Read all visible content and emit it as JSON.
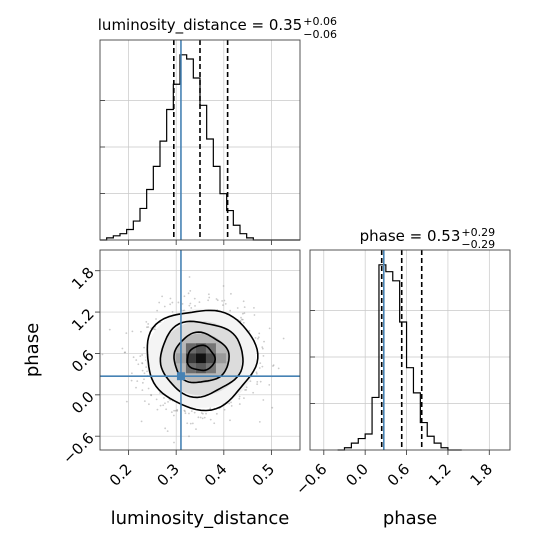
{
  "chart_data": {
    "type": "corner",
    "parameters": [
      "luminosity_distance",
      "phase"
    ],
    "truth": {
      "luminosity_distance": 0.31,
      "phase": 0.27
    },
    "titles": [
      {
        "param": "luminosity_distance",
        "median": "0.35",
        "plus": "+0.06",
        "minus": "−0.06"
      },
      {
        "param": "phase",
        "median": "0.53",
        "plus": "+0.29",
        "minus": "−0.29"
      }
    ],
    "luminosity_distance": {
      "xlim": [
        0.14,
        0.56
      ],
      "ticks": [
        0.2,
        0.3,
        0.4,
        0.5
      ],
      "tick_labels": [
        "0.2",
        "0.3",
        "0.4",
        "0.5"
      ],
      "hist_bin_width": 0.014,
      "hist_bins_start": 0.14,
      "hist_counts": [
        0,
        1,
        2,
        3,
        5,
        9,
        15,
        24,
        35,
        47,
        62,
        74,
        88,
        86,
        77,
        64,
        48,
        35,
        22,
        14,
        7,
        3,
        1,
        0,
        0,
        0,
        0,
        0,
        0,
        0
      ],
      "quantiles": [
        0.295,
        0.35,
        0.408
      ]
    },
    "phase": {
      "lim": [
        -0.8,
        2.1
      ],
      "ticks": [
        -0.6,
        0.0,
        0.6,
        1.2,
        1.8
      ],
      "tick_labels": [
        "−0.6",
        "0.0",
        "0.6",
        "1.2",
        "1.8"
      ],
      "hist_bin_width": 0.1,
      "hist_bins_start": -0.4,
      "hist_counts": [
        0,
        1,
        3,
        5,
        7,
        23,
        81,
        78,
        74,
        56,
        36,
        25,
        12,
        6,
        3,
        1,
        0,
        0
      ],
      "quantiles": [
        0.24,
        0.53,
        0.82
      ]
    },
    "density_2d": {
      "center": [
        0.352,
        0.53
      ],
      "contour_levels_sigma": [
        0.5,
        1.0,
        1.5,
        2.0
      ],
      "contour_half_widths": {
        "luminosity_distance": 0.055,
        "phase": 0.36
      }
    }
  }
}
